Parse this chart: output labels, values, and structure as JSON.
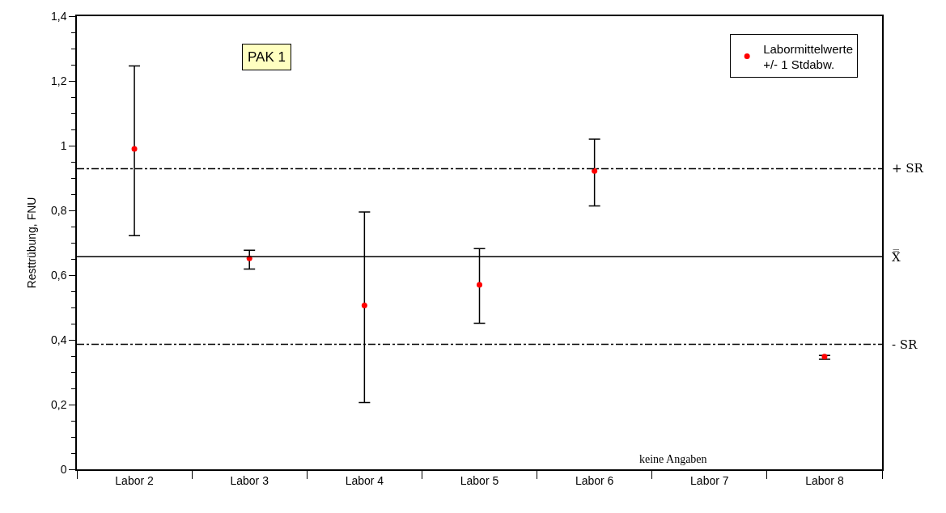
{
  "chart_data": {
    "type": "scatter",
    "ylabel": "Resttrübung, FNU",
    "categories": [
      "Labor 2",
      "Labor 3",
      "Labor 4",
      "Labor 5",
      "Labor 6",
      "Labor 7",
      "Labor 8"
    ],
    "series": [
      {
        "name": "Labormittelwerte\n+/- 1 Stdabw.",
        "color": "#ff0000",
        "values": [
          0.99,
          0.652,
          0.506,
          0.57,
          0.922,
          null,
          0.348
        ],
        "errors": [
          [
            0.722,
            1.246
          ],
          [
            0.619,
            0.677
          ],
          [
            0.206,
            0.795
          ],
          [
            0.451,
            0.682
          ],
          [
            0.814,
            1.02
          ],
          null,
          [
            0.34,
            0.352
          ]
        ]
      }
    ],
    "ylim": [
      0,
      1.4
    ],
    "yticks": [
      0,
      {
        "value": 0.2,
        "label": "0,2"
      },
      {
        "value": 0.4,
        "label": "0,4"
      },
      {
        "value": 0.6,
        "label": "0,6"
      },
      {
        "value": 0.8,
        "label": "0,8"
      },
      1,
      {
        "value": 1.2,
        "label": "1,2"
      },
      {
        "value": 1.4,
        "label": "1,4"
      }
    ],
    "ref_lines": [
      {
        "axis": "y",
        "value": 0.929,
        "label": "+ SR",
        "color": "#000000",
        "line_style": "dashed"
      },
      {
        "axis": "y",
        "value": 0.657,
        "label": "X̿",
        "color": "#000000",
        "line_style": "solid"
      },
      {
        "axis": "y",
        "value": 0.386,
        "label": "- SR",
        "color": "#000000",
        "line_style": "dashed"
      }
    ],
    "annotations": [
      "PAK 1",
      "keine Angaben"
    ],
    "marker": "circle",
    "legend": "top right"
  }
}
